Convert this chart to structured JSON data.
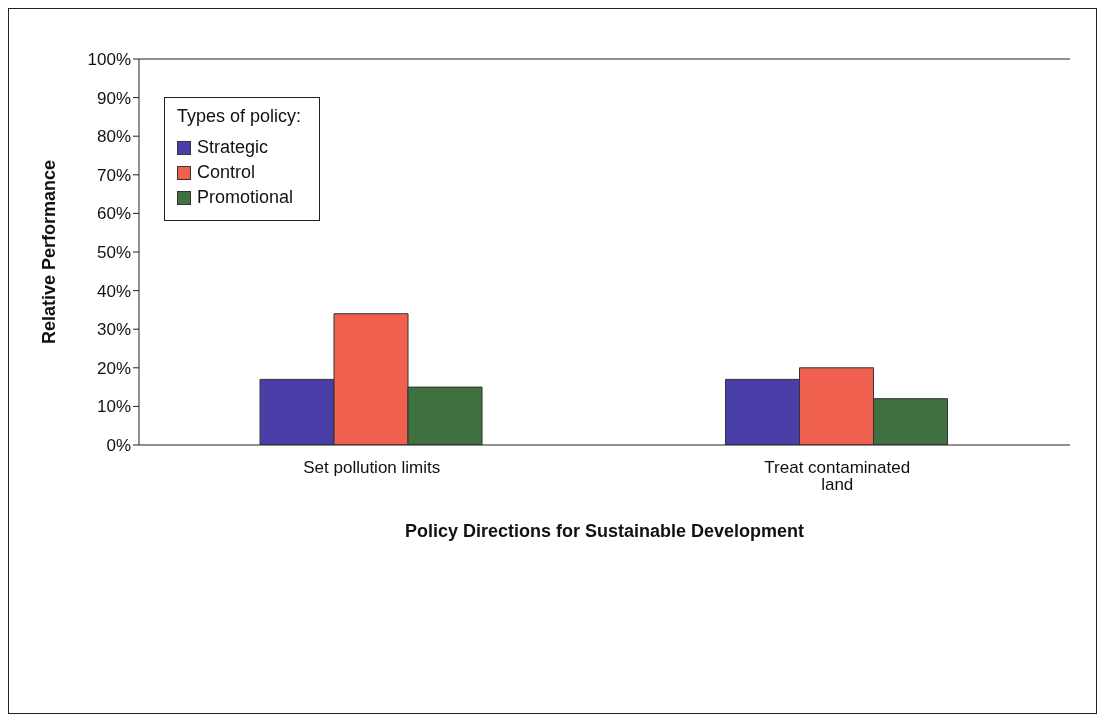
{
  "chart_data": {
    "type": "bar",
    "xlabel": "Policy Directions for Sustainable Development",
    "ylabel": "Relative Performance",
    "legend_title": "Types of policy:",
    "legend": "top left",
    "categories": [
      "Set pollution limits",
      "Treat contaminated land"
    ],
    "series": [
      {
        "name": "Strategic",
        "color": "#4a3fa8",
        "values": [
          17,
          17
        ]
      },
      {
        "name": "Control",
        "color": "#f0604e",
        "values": [
          34,
          20
        ]
      },
      {
        "name": "Promotional",
        "color": "#3e7040",
        "values": [
          15,
          12
        ]
      }
    ],
    "ylim": [
      0,
      100
    ],
    "yticks": [
      {
        "value": 0,
        "label": "0%"
      },
      {
        "value": 10,
        "label": "10%"
      },
      {
        "value": 20,
        "label": "20%"
      },
      {
        "value": 30,
        "label": "30%"
      },
      {
        "value": 40,
        "label": "40%"
      },
      {
        "value": 50,
        "label": "50%"
      },
      {
        "value": 60,
        "label": "60%"
      },
      {
        "value": 70,
        "label": "70%"
      },
      {
        "value": 80,
        "label": "80%"
      },
      {
        "value": 90,
        "label": "90%"
      },
      {
        "value": 100,
        "label": "100%"
      }
    ],
    "grid": false
  }
}
